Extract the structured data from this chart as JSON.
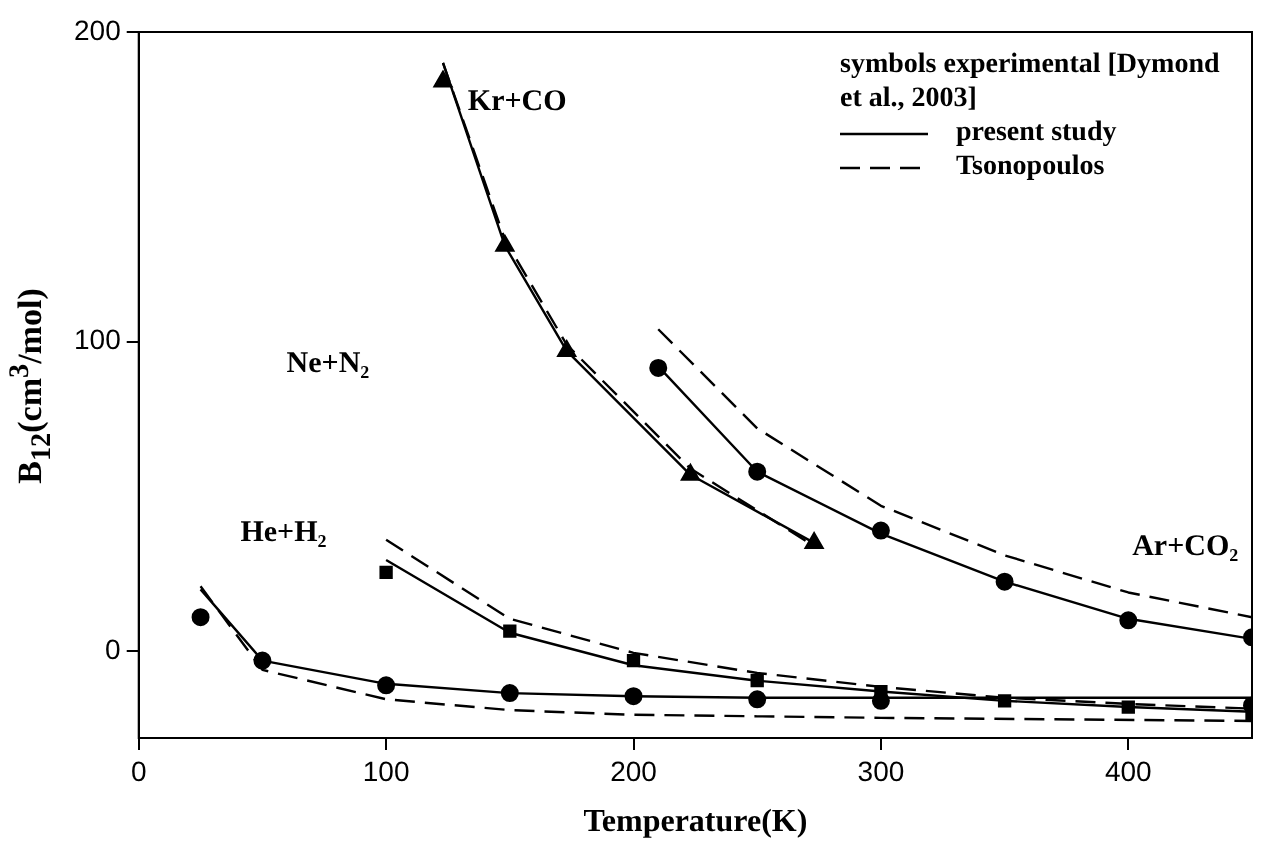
{
  "chart_data": {
    "type": "line",
    "xlabel": "Temperature(K)",
    "ylabel": "B$_{12}$(cm$^{3}$/mol)",
    "legend_title": "symbols experimental [Dymond et al., 2003]",
    "xlim": [
      0,
      450
    ],
    "ylim": [
      -28,
      200
    ],
    "xticks": [
      0,
      100,
      200,
      300,
      400
    ],
    "yticks": [
      0,
      100,
      200
    ],
    "grid": false,
    "legend": "top right",
    "series": [
      {
        "type": "scatter",
        "marker": "triangle",
        "color": "#000000",
        "x": [
          123,
          148,
          173,
          223,
          273
        ],
        "values": [
          184,
          131,
          97,
          57,
          35
        ]
      },
      {
        "marker": "none",
        "line_style": "solid",
        "name": "present study",
        "color": "#000000",
        "x": [
          123,
          148,
          173,
          223,
          273
        ],
        "values": [
          190,
          131,
          97,
          57,
          35
        ]
      },
      {
        "marker": "none",
        "line_style": "dashed",
        "name": "Tsonopoulos",
        "color": "#000000",
        "x": [
          123,
          148,
          173,
          223,
          273
        ],
        "values": [
          190,
          133,
          99,
          59,
          34
        ]
      },
      {
        "type": "scatter",
        "marker": "circle",
        "color": "#000000",
        "x": [
          210,
          250,
          300,
          350,
          400,
          450
        ],
        "values": [
          91.5,
          58,
          39,
          22.5,
          10,
          4.5
        ]
      },
      {
        "marker": "none",
        "line_style": "solid",
        "color": "#000000",
        "x": [
          210,
          250,
          300,
          350,
          400,
          450
        ],
        "values": [
          92,
          58,
          38,
          22.5,
          10.5,
          4
        ]
      },
      {
        "marker": "none",
        "line_style": "dashed",
        "color": "#000000",
        "x": [
          210,
          250,
          300,
          350,
          400,
          450
        ],
        "values": [
          104,
          72,
          47,
          31,
          19,
          11
        ]
      },
      {
        "type": "scatter",
        "marker": "square",
        "color": "#000000",
        "x": [
          100,
          150,
          200,
          250,
          300,
          350,
          400,
          450
        ],
        "values": [
          25.5,
          6.5,
          -3,
          -9.5,
          -13,
          -16,
          -18,
          -20
        ]
      },
      {
        "marker": "none",
        "line_style": "solid",
        "color": "#000000",
        "x": [
          100,
          150,
          200,
          250,
          300,
          350,
          400,
          450
        ],
        "values": [
          29.5,
          6,
          -4.5,
          -9.5,
          -13,
          -16,
          -18,
          -19.5
        ]
      },
      {
        "marker": "none",
        "line_style": "dashed",
        "color": "#000000",
        "x": [
          100,
          150,
          200,
          250,
          300,
          350,
          400,
          450
        ],
        "values": [
          36,
          10.5,
          -0.5,
          -7,
          -11.5,
          -15,
          -17,
          -18.5
        ]
      },
      {
        "type": "scatter",
        "marker": "circle",
        "color": "#000000",
        "x": [
          25,
          50,
          100,
          150,
          200,
          250,
          300,
          450
        ],
        "values": [
          11,
          -3,
          -11,
          -13.5,
          -14.5,
          -15.5,
          -16,
          -17.5
        ]
      },
      {
        "marker": "none",
        "line_style": "solid",
        "color": "#000000",
        "x": [
          25,
          50,
          100,
          150,
          200,
          250,
          300,
          450
        ],
        "values": [
          20,
          -3,
          -10.5,
          -13.5,
          -14.5,
          -15,
          -15,
          -15
        ]
      },
      {
        "marker": "none",
        "line_style": "dashed",
        "color": "#000000",
        "x": [
          25,
          50,
          100,
          150,
          200,
          250,
          300,
          450
        ],
        "values": [
          21,
          -6,
          -15.5,
          -19,
          -20.5,
          -21,
          -21.5,
          -22.5
        ]
      }
    ],
    "annotations": [
      "Kr+CO",
      "Ne+N₂",
      "He+H₂",
      "Ar+CO₂"
    ]
  }
}
